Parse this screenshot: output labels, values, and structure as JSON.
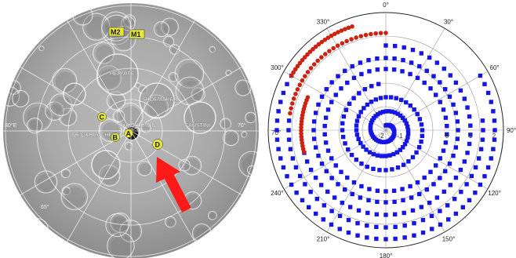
{
  "lunar_map": {
    "crater_labels": [
      "HERMITE",
      "SHOEMAKER",
      "SHACKLETON",
      "FAUSTINI",
      "DE GERLACHE"
    ],
    "markers": [
      {
        "id": "M2",
        "label": "M2"
      },
      {
        "id": "M1",
        "label": "M1"
      },
      {
        "id": "C",
        "label": "C"
      },
      {
        "id": "B",
        "label": "B"
      },
      {
        "id": "A",
        "label": "A"
      },
      {
        "id": "D",
        "label": "D"
      }
    ],
    "edge_numbers": [
      "80°E",
      "70°",
      "65°"
    ],
    "marker_color": "#e5e83a",
    "arrow_color": "#ff1a1a"
  },
  "polar_plot": {
    "angle_labels": [
      "0°",
      "30°",
      "60°",
      "90°",
      "120°",
      "150°",
      "180°",
      "210°",
      "240°",
      "270°",
      "300°",
      "330°"
    ],
    "left_label": "70°",
    "ring_labels": [
      "-2",
      "-1",
      "0",
      "1",
      "2"
    ],
    "red_color": "#cc2211",
    "blue_color": "#1515e6"
  }
}
